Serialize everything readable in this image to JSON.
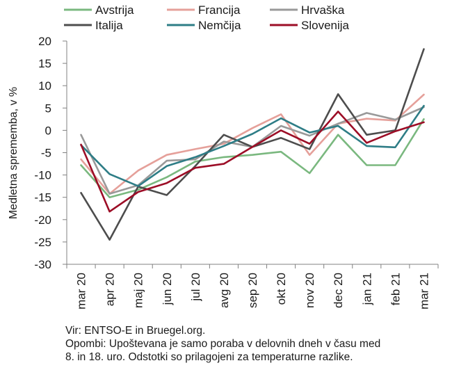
{
  "chart_data": {
    "type": "line",
    "title": "",
    "xlabel": "",
    "ylabel": "Medletna sprememba, v %",
    "ylim": [
      -30,
      20
    ],
    "yticks": [
      20,
      15,
      10,
      5,
      0,
      -5,
      -10,
      -15,
      -20,
      -25,
      -30
    ],
    "grid": false,
    "legend_position": "top",
    "categories": [
      "mar 20",
      "apr 20",
      "maj 20",
      "jun 20",
      "jul 20",
      "avg 20",
      "sep 20",
      "okt 20",
      "nov 20",
      "dec 20",
      "jan 21",
      "feb 21",
      "mar 21"
    ],
    "series": [
      {
        "name": "Avstrija",
        "color": "#7ab87f",
        "values": [
          -7.8,
          -15,
          -13.3,
          -10.5,
          -7,
          -6,
          -5.5,
          -4.8,
          -9.6,
          -1,
          -7.8,
          -7.8,
          2.5
        ]
      },
      {
        "name": "Francija",
        "color": "#e5a09a",
        "values": [
          -6.5,
          -14.2,
          -9,
          -5.5,
          -4.2,
          -3,
          0.5,
          3.6,
          -5.5,
          1.5,
          2.6,
          2.2,
          8
        ]
      },
      {
        "name": "Hrvaška",
        "color": "#999999",
        "values": [
          -1,
          -14.2,
          -12.3,
          -6.8,
          -6.5,
          -2.5,
          -3.7,
          1,
          -1.2,
          1.5,
          3.9,
          2.4,
          5.2
        ]
      },
      {
        "name": "Italija",
        "color": "#4d4d4d",
        "values": [
          -14,
          -24.5,
          -12.6,
          -14.5,
          -8,
          -1,
          -3.7,
          -1.7,
          -4.2,
          8.1,
          -1,
          0,
          18.2
        ]
      },
      {
        "name": "Nemčija",
        "color": "#2e7d86",
        "values": [
          -3.3,
          -9.8,
          -12.5,
          -8,
          -6,
          -3.5,
          -0.8,
          2.7,
          -0.5,
          1,
          -3.5,
          -3.8,
          5.5
        ]
      },
      {
        "name": "Slovenija",
        "color": "#9c0d26",
        "values": [
          -3.2,
          -18.2,
          -13.8,
          -11.8,
          -8.4,
          -7.5,
          -3.7,
          0,
          -3,
          4.2,
          -2.8,
          -0.2,
          1.8
        ]
      }
    ]
  },
  "notes": {
    "source": "Vir: ENTSO-E in Bruegel.org.",
    "remarks_line1": "Opombi: Upoštevana je samo poraba v delovnih dneh v času med",
    "remarks_line2": "8. in 18. uro. Odstotki so prilagojeni za temperaturne razlike."
  }
}
